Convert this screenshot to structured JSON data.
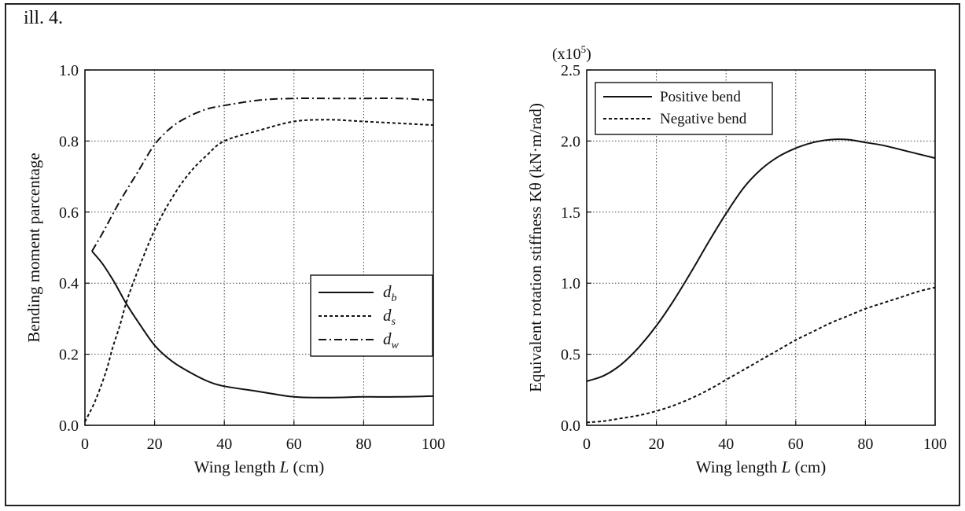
{
  "figure": {
    "label": "ill. 4."
  },
  "chart_data": [
    {
      "type": "line",
      "xlabel_prefix": "Wing length ",
      "xlabel_var": "L",
      "xlabel_suffix": "  (cm)",
      "ylabel": "Bending moment parcentage",
      "xlim": [
        0,
        100
      ],
      "ylim": [
        0.0,
        1.0
      ],
      "xticks": [
        "0",
        "20",
        "40",
        "60",
        "80",
        "100"
      ],
      "yticks": [
        "0.0",
        "0.2",
        "0.4",
        "0.6",
        "0.8",
        "1.0"
      ],
      "grid": true,
      "legend_position": "right",
      "series": [
        {
          "name": "d_b",
          "label_main": "d",
          "label_sub": "b",
          "style": "solid",
          "x": [
            2,
            5,
            8,
            10,
            12,
            15,
            20,
            25,
            30,
            35,
            40,
            50,
            60,
            70,
            80,
            90,
            100
          ],
          "y": [
            0.49,
            0.455,
            0.41,
            0.375,
            0.34,
            0.295,
            0.225,
            0.18,
            0.15,
            0.125,
            0.11,
            0.095,
            0.08,
            0.078,
            0.08,
            0.08,
            0.082
          ]
        },
        {
          "name": "d_s",
          "label_main": "d",
          "label_sub": "s",
          "style": "dashed",
          "x": [
            0,
            3,
            6,
            8,
            10,
            12,
            15,
            20,
            25,
            30,
            35,
            40,
            50,
            60,
            70,
            80,
            90,
            100
          ],
          "y": [
            0.01,
            0.07,
            0.15,
            0.22,
            0.28,
            0.35,
            0.43,
            0.55,
            0.64,
            0.71,
            0.76,
            0.8,
            0.83,
            0.855,
            0.86,
            0.855,
            0.85,
            0.845
          ]
        },
        {
          "name": "d_w",
          "label_main": "d",
          "label_sub": "w",
          "style": "dashdot",
          "x": [
            2,
            5,
            10,
            15,
            20,
            25,
            30,
            35,
            40,
            50,
            60,
            70,
            80,
            90,
            100
          ],
          "y": [
            0.49,
            0.54,
            0.63,
            0.71,
            0.79,
            0.84,
            0.87,
            0.89,
            0.9,
            0.915,
            0.92,
            0.92,
            0.92,
            0.92,
            0.915
          ]
        }
      ]
    },
    {
      "type": "line",
      "xlabel_prefix": "Wing length ",
      "xlabel_var": "L",
      "xlabel_suffix": "  (cm)",
      "ylabel": "Equivalent rotation stiffness Kθ (kN·m/rad)",
      "yscale_base": "(x10",
      "yscale_exp": "5",
      "yscale_close": ")",
      "xlim": [
        0,
        100
      ],
      "ylim": [
        0.0,
        2.5
      ],
      "xticks": [
        "0",
        "20",
        "40",
        "60",
        "80",
        "100"
      ],
      "yticks": [
        "0.0",
        "0.5",
        "1.0",
        "1.5",
        "2.0",
        "2.5"
      ],
      "grid": true,
      "legend_position": "top-left",
      "series": [
        {
          "name": "Positive bend",
          "style": "solid",
          "x": [
            0,
            5,
            10,
            15,
            20,
            25,
            30,
            35,
            40,
            45,
            50,
            55,
            60,
            65,
            70,
            75,
            80,
            85,
            90,
            95,
            100
          ],
          "y": [
            0.31,
            0.35,
            0.43,
            0.55,
            0.7,
            0.88,
            1.08,
            1.29,
            1.49,
            1.67,
            1.8,
            1.89,
            1.95,
            1.99,
            2.01,
            2.01,
            1.99,
            1.97,
            1.94,
            1.91,
            1.88
          ]
        },
        {
          "name": "Negative bend",
          "style": "dashed",
          "x": [
            0,
            5,
            10,
            15,
            20,
            25,
            30,
            35,
            40,
            45,
            50,
            55,
            60,
            65,
            70,
            75,
            80,
            85,
            90,
            95,
            100
          ],
          "y": [
            0.02,
            0.03,
            0.05,
            0.07,
            0.1,
            0.14,
            0.19,
            0.25,
            0.32,
            0.39,
            0.46,
            0.53,
            0.6,
            0.66,
            0.72,
            0.77,
            0.82,
            0.86,
            0.9,
            0.94,
            0.97
          ]
        }
      ]
    }
  ]
}
